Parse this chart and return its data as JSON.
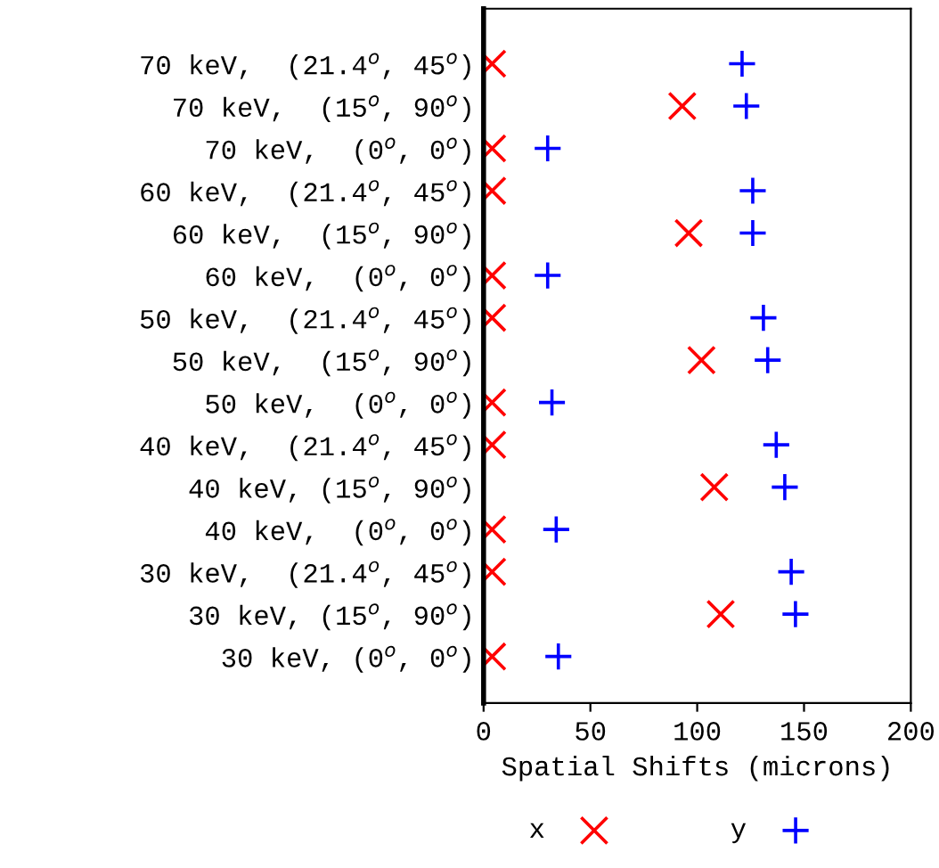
{
  "chart_data": {
    "type": "scatter",
    "orientation": "horizontal",
    "xlabel": "Spatial Shifts (microns)",
    "categories": [
      "70 keV,  (21.4$^{o}$, 45$^{o}$)",
      "70 keV,  (15$^{o}$, 90$^{o}$)",
      "70 keV,  (0$^{o}$, 0$^{o}$)",
      "60 keV,  (21.4$^{o}$, 45$^{o}$)",
      "60 keV,  (15$^{o}$, 90$^{o}$)",
      "60 keV,  (0$^{o}$, 0$^{o}$)",
      "50 keV,  (21.4$^{o}$, 45$^{o}$)",
      "50 keV,  (15$^{o}$, 90$^{o}$)",
      "50 keV,  (0$^{o}$, 0$^{o}$)",
      "40 keV,  (21.4$^{o}$, 45$^{o}$)",
      "40 keV, (15$^{o}$, 90$^{o}$)",
      "40 keV,  (0$^{o}$, 0$^{o}$)",
      "30 keV,  (21.4$^{o}$, 45$^{o}$)",
      "30 keV, (15$^{o}$, 90$^{o}$)",
      "30 keV, (0$^{o}$, 0$^{o}$)"
    ],
    "series": [
      {
        "name": "x",
        "color": "#ff0000",
        "marker": "cross",
        "values": [
          4,
          93,
          4,
          4,
          96,
          4,
          4,
          102,
          4,
          4,
          108,
          4,
          4,
          111,
          4
        ]
      },
      {
        "name": "y",
        "color": "#0000ff",
        "marker": "plus",
        "values": [
          121,
          123,
          30,
          126,
          126,
          30,
          131,
          133,
          32,
          137,
          141,
          34,
          144,
          146,
          35
        ]
      }
    ],
    "xlim": [
      0,
      200
    ],
    "xticks": [
      0,
      50,
      100,
      150,
      200
    ],
    "grid": false,
    "legend": "bottom"
  }
}
